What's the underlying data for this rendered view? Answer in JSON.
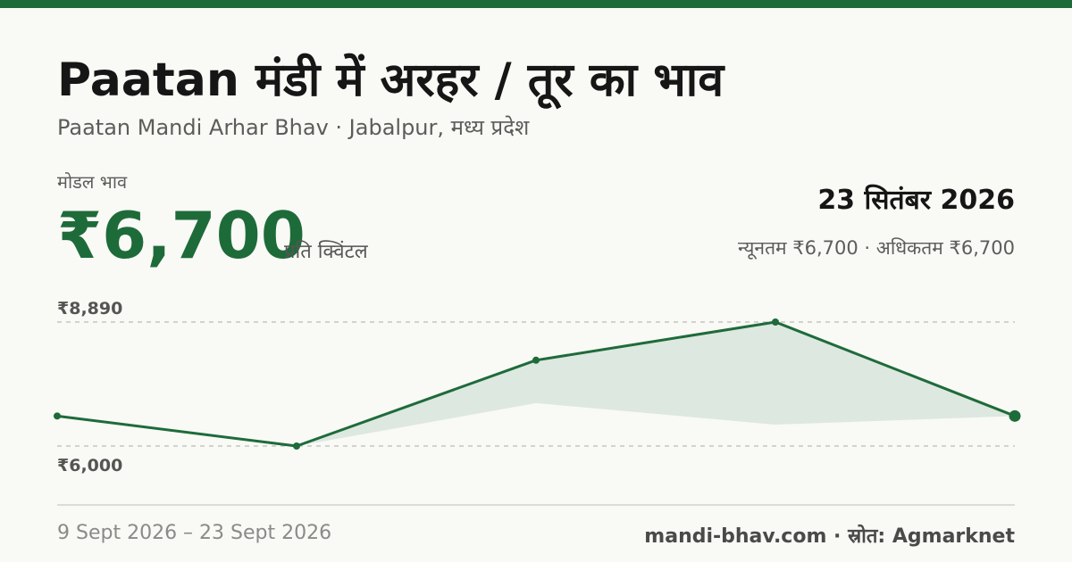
{
  "header": {
    "title": "Paatan मंडी में अरहर / तूर का भाव",
    "subtitle": "Paatan Mandi Arhar Bhav · Jabalpur, मध्य प्रदेश"
  },
  "summary": {
    "modal_label": "मोडल भाव",
    "modal_price": "₹6,700",
    "unit": "प्रति क्विंटल",
    "date": "23 सितंबर 2026",
    "min_max": "न्यूनतम ₹6,700 · अधिकतम ₹6,700"
  },
  "chart_data": {
    "type": "line",
    "x": [
      "9 Sept 2026",
      "",
      "",
      "",
      "23 Sept 2026"
    ],
    "series": [
      {
        "values": [
          6700,
          6000,
          8000,
          8890,
          6700
        ]
      }
    ],
    "band": {
      "lower": [
        6700,
        6000,
        7000,
        6500,
        6700
      ]
    },
    "y_tick_labels": [
      "₹8,890",
      "₹6,000"
    ],
    "y_ticks": [
      8890,
      6000
    ],
    "ylim": [
      6000,
      8890
    ],
    "grid": true,
    "colors": {
      "line": "#1e6b3a",
      "band": "#dde8e0",
      "grid": "#bdbdb6",
      "tick_text": "#555555"
    }
  },
  "footer": {
    "date_range": "9 Sept 2026 – 23 Sept 2026",
    "site": "mandi-bhav.com",
    "separator": " · ",
    "source_label": "स्रोत: ",
    "source_name": "Agmarknet"
  },
  "colors": {
    "accent": "#1e6b3a",
    "background": "#f9f9f5"
  }
}
